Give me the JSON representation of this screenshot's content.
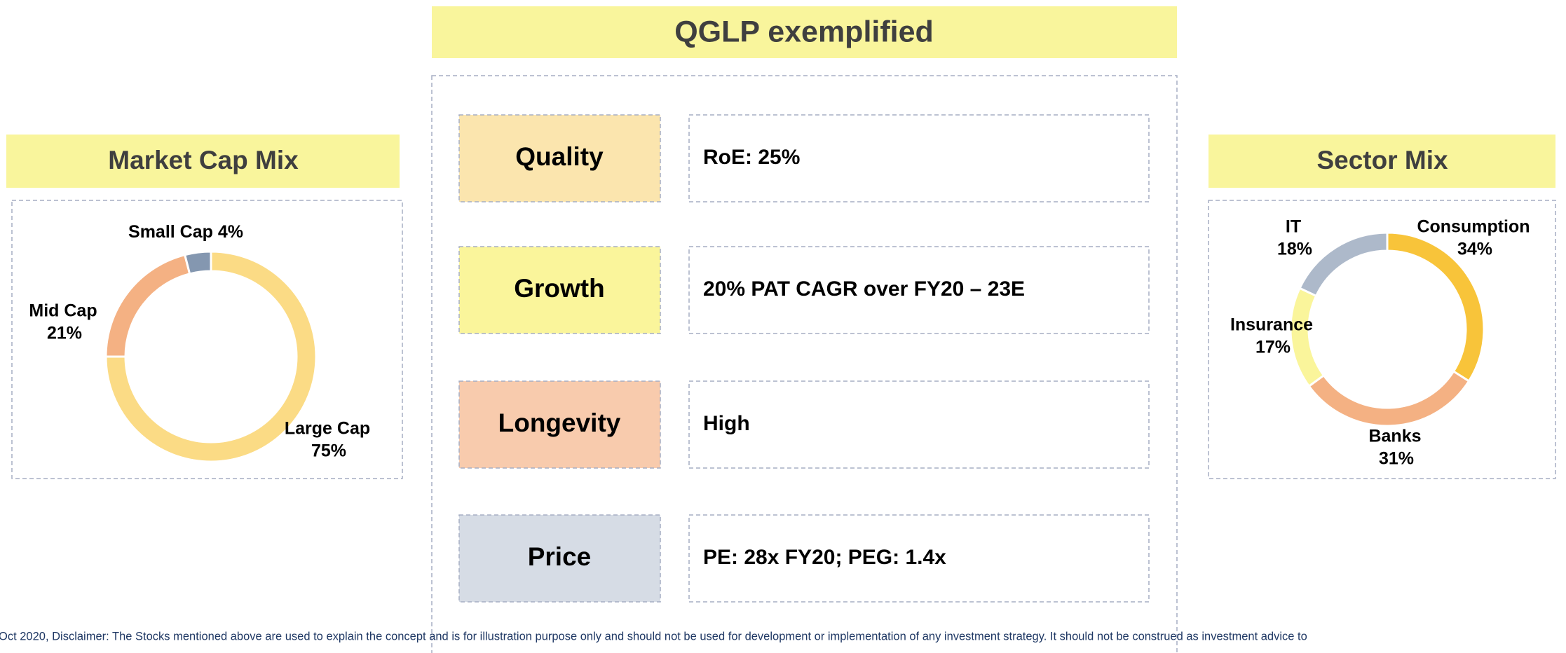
{
  "header": {
    "title": "QGLP exemplified"
  },
  "qglp": {
    "rows": [
      {
        "label": "Quality",
        "text": "RoE: 25%"
      },
      {
        "label": "Growth",
        "text": "20% PAT CAGR over FY20 – 23E"
      },
      {
        "label": "Longevity",
        "text": "High"
      },
      {
        "label": "Price",
        "text": "PE: 28x FY20; PEG: 1.4x"
      }
    ]
  },
  "chart_data": [
    {
      "type": "pie",
      "title": "Market Cap Mix",
      "categories": [
        "Large Cap",
        "Mid Cap",
        "Small Cap"
      ],
      "values": [
        75,
        21,
        4
      ],
      "value_labels": [
        "75%",
        "21%",
        "4%"
      ],
      "colors": [
        "#fbdb85",
        "#f4b183",
        "#8497b0"
      ]
    },
    {
      "type": "pie",
      "title": "Sector Mix",
      "categories": [
        "Consumption",
        "Banks",
        "Insurance",
        "IT"
      ],
      "values": [
        34,
        31,
        17,
        18
      ],
      "value_labels": [
        "34%",
        "31%",
        "17%",
        "18%"
      ],
      "colors": [
        "#f8c43a",
        "#f4b183",
        "#faf59b",
        "#adb9ca"
      ]
    }
  ],
  "footer": {
    "text": "Oct 2020, Disclaimer: The Stocks mentioned above are used to explain the concept and is for illustration purpose only and should not be used for development or implementation of any investment strategy. It should not be construed as investment advice to"
  }
}
